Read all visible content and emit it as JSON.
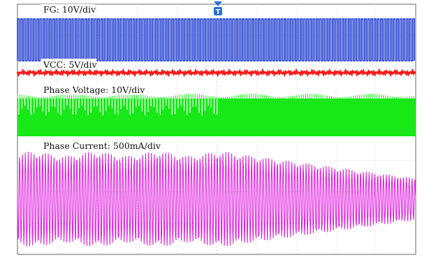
{
  "chart_data": {
    "type": "line",
    "title": "",
    "xlabel": "",
    "ylabel": "",
    "grid": true,
    "trigger_marker": "T",
    "series": [
      {
        "name": "FG: 10V/div",
        "color": "#1f3ccf",
        "kind": "square_wave"
      },
      {
        "name": "VCC: 5V/div",
        "color": "#ff1a1a",
        "kind": "flat_noisy"
      },
      {
        "name": "Phase Voltage: 10V/div",
        "color": "#18e818",
        "kind": "pwm_burst"
      },
      {
        "name": "Phase Current: 500mA/div",
        "color": "#e020e0",
        "kind": "decaying_sine"
      }
    ]
  }
}
